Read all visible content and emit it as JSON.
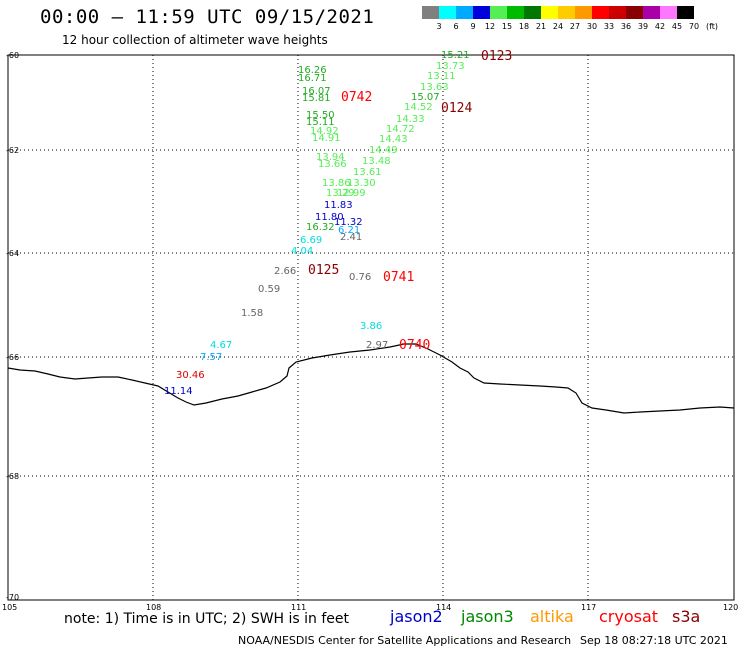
{
  "title": "00:00 – 11:59 UTC 09/15/2021",
  "subtitle": "12 hour collection of altimeter wave heights",
  "legend": {
    "colors": [
      "#808080",
      "#00ffff",
      "#00aaff",
      "#0000dd",
      "#55ee55",
      "#00bb00",
      "#007700",
      "#ffff00",
      "#ffcc00",
      "#ff9900",
      "#ff0000",
      "#cc0000",
      "#880000",
      "#aa00aa",
      "#ff77ff",
      "#000000"
    ],
    "labels": [
      "3",
      "6",
      "9",
      "12",
      "15",
      "18",
      "21",
      "24",
      "27",
      "30",
      "33",
      "36",
      "39",
      "42",
      "45",
      "70",
      "(ft)"
    ]
  },
  "axes": {
    "lat_labels": [
      "-60",
      "-62",
      "-64",
      "-66",
      "-68",
      "-70"
    ],
    "lon_labels": [
      "105",
      "108",
      "111",
      "114",
      "117",
      "120"
    ]
  },
  "observations": [
    {
      "text": "15.21",
      "color": "#22aa22"
    },
    {
      "text": "13.73",
      "color": "#55ee55"
    },
    {
      "text": "13.11",
      "color": "#55ee55"
    },
    {
      "text": "13.63",
      "color": "#55ee55"
    },
    {
      "text": "15.07",
      "color": "#22aa22"
    },
    {
      "text": "14.52",
      "color": "#55ee55"
    },
    {
      "text": "14.33",
      "color": "#55ee55"
    },
    {
      "text": "14.72",
      "color": "#55ee55"
    },
    {
      "text": "14.43",
      "color": "#55ee55"
    },
    {
      "text": "14.49",
      "color": "#55ee55"
    },
    {
      "text": "13.48",
      "color": "#55ee55"
    },
    {
      "text": "13.61",
      "color": "#55ee55"
    },
    {
      "text": "13.30",
      "color": "#55ee55"
    },
    {
      "text": "12.99",
      "color": "#55ee55"
    },
    {
      "text": "16.26",
      "color": "#22aa22"
    },
    {
      "text": "16.71",
      "color": "#22aa22"
    },
    {
      "text": "16.07",
      "color": "#22aa22"
    },
    {
      "text": "15.81",
      "color": "#22aa22"
    },
    {
      "text": "15.50",
      "color": "#22aa22"
    },
    {
      "text": "15.11",
      "color": "#22aa22"
    },
    {
      "text": "14.92",
      "color": "#55ee55"
    },
    {
      "text": "14.91",
      "color": "#55ee55"
    },
    {
      "text": "13.94",
      "color": "#55ee55"
    },
    {
      "text": "13.66",
      "color": "#55ee55"
    },
    {
      "text": "13.86",
      "color": "#55ee55"
    },
    {
      "text": "13.29",
      "color": "#55ee55"
    },
    {
      "text": "11.83",
      "color": "#0000cc"
    },
    {
      "text": "11.80",
      "color": "#0000cc"
    },
    {
      "text": "11.32",
      "color": "#0000cc"
    },
    {
      "text": "16.32",
      "color": "#22aa22"
    },
    {
      "text": "6.21",
      "color": "#00aaff"
    },
    {
      "text": "2.41",
      "color": "#666666"
    },
    {
      "text": "6.69",
      "color": "#00dddd"
    },
    {
      "text": "4.04",
      "color": "#00dddd"
    },
    {
      "text": "2.66",
      "color": "#666666"
    },
    {
      "text": "0.59",
      "color": "#666666"
    },
    {
      "text": "1.58",
      "color": "#666666"
    },
    {
      "text": "4.67",
      "color": "#00dddd"
    },
    {
      "text": "7.57",
      "color": "#00aaff"
    },
    {
      "text": "30.46",
      "color": "#dd0000"
    },
    {
      "text": "11.14",
      "color": "#0000cc"
    },
    {
      "text": "0.76",
      "color": "#666666"
    },
    {
      "text": "3.86",
      "color": "#00dddd"
    },
    {
      "text": "2.97",
      "color": "#666666"
    }
  ],
  "time_labels": [
    {
      "text": "0123",
      "color": "#880000"
    },
    {
      "text": "0742",
      "color": "#ff0000"
    },
    {
      "text": "0124",
      "color": "#880000"
    },
    {
      "text": "0125",
      "color": "#880000"
    },
    {
      "text": "0741",
      "color": "#ff0000"
    },
    {
      "text": "0740",
      "color": "#ff0000"
    }
  ],
  "note": "note: 1) Time is in UTC; 2) SWH is in feet",
  "satellites": [
    {
      "name": "jason2",
      "color": "#0000cc"
    },
    {
      "name": "jason3",
      "color": "#008800"
    },
    {
      "name": "altika",
      "color": "#ff9900"
    },
    {
      "name": "cryosat",
      "color": "#ff0000"
    },
    {
      "name": "s3a",
      "color": "#880000"
    }
  ],
  "credit": "NOAA/NESDIS Center for Satellite Applications and Research",
  "timestamp": "Sep 18 08:27:18 UTC 2021"
}
